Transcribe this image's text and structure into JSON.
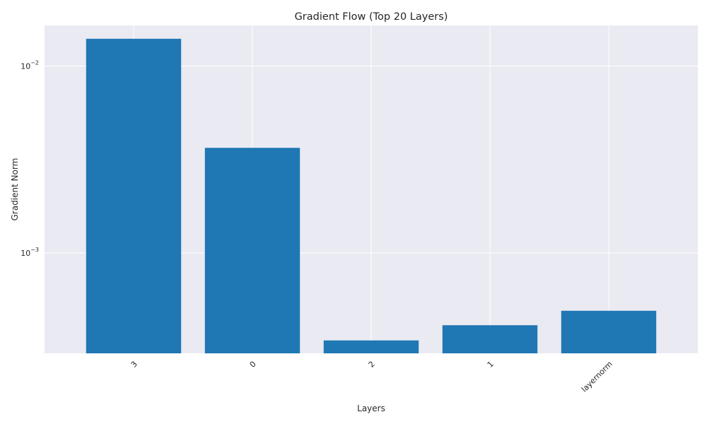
{
  "chart_data": {
    "type": "bar",
    "title": "Gradient Flow (Top 20 Layers)",
    "xlabel": "Layers",
    "ylabel": "Gradient Norm",
    "yscale": "log",
    "ylim": [
      0.00029,
      0.0165
    ],
    "categories": [
      "3",
      "0",
      "2",
      "1",
      "layernorm"
    ],
    "values": [
      0.014,
      0.00365,
      0.00034,
      0.00041,
      0.00049
    ],
    "y_ticks": [
      {
        "value": 0.001,
        "base": "10",
        "exp": "−3"
      },
      {
        "value": 0.01,
        "base": "10",
        "exp": "−2"
      }
    ],
    "x_tick_rotation": 45,
    "grid": true,
    "bar_color": "#1f77b4",
    "background_color": "#eaeaf2",
    "grid_color": "#ffffff"
  }
}
